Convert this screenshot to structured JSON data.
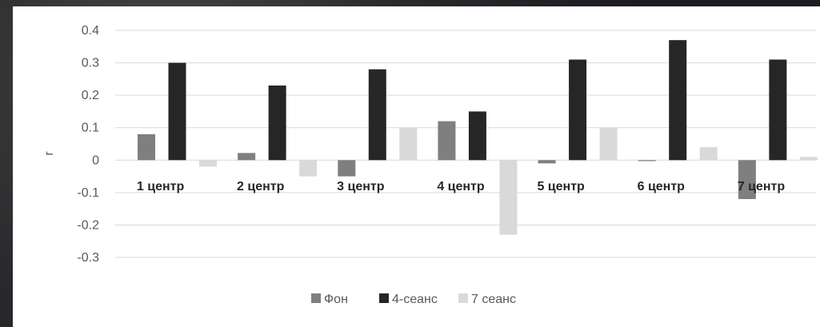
{
  "chart_data": {
    "type": "bar",
    "title": "",
    "xlabel": "",
    "ylabel": "r",
    "ylim": [
      -0.3,
      0.4
    ],
    "yticks": [
      0.4,
      0.3,
      0.2,
      0.1,
      0,
      -0.1,
      -0.2,
      -0.3
    ],
    "ytick_labels": [
      "0.4",
      "0.3",
      "0.2",
      "0.1",
      "0",
      "-0.1",
      "-0.2",
      "-0.3"
    ],
    "grid": true,
    "legend_position": "bottom",
    "categories": [
      "1 центр",
      "2 центр",
      "3 центр",
      "4 центр",
      "5 центр",
      "6 центр",
      "7 центр"
    ],
    "series": [
      {
        "name": "Фон",
        "color": "#7f7f7f",
        "values": [
          0.08,
          0.022,
          -0.05,
          0.12,
          -0.01,
          -0.003,
          -0.12
        ]
      },
      {
        "name": "4-сеанс",
        "color": "#262626",
        "values": [
          0.3,
          0.23,
          0.28,
          0.15,
          0.31,
          0.37,
          0.31
        ]
      },
      {
        "name": "7 сеанс",
        "color": "#d9d9d9",
        "values": [
          -0.02,
          -0.05,
          0.1,
          -0.23,
          0.1,
          0.04,
          0.01
        ]
      }
    ]
  }
}
